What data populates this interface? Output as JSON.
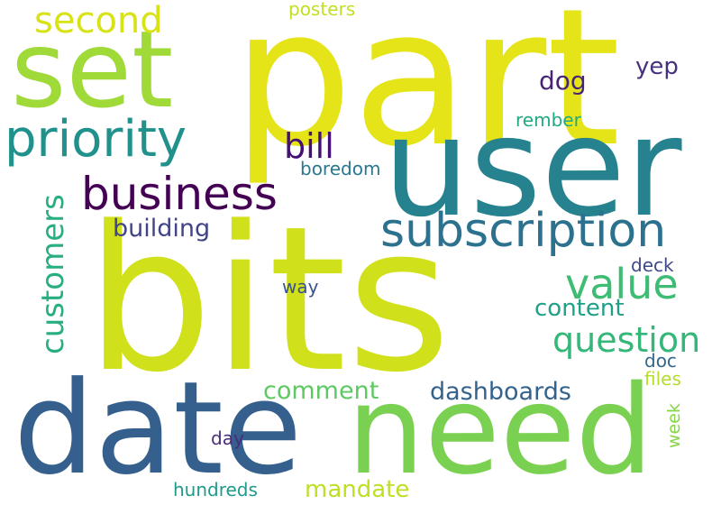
{
  "background": "#ffffff",
  "words": [
    {
      "id": "part",
      "text": "part",
      "color": "#e5e419"
    },
    {
      "id": "bits",
      "text": "bits",
      "color": "#d0e11c"
    },
    {
      "id": "user",
      "text": "user",
      "color": "#26828e"
    },
    {
      "id": "date",
      "text": "date",
      "color": "#355f8d"
    },
    {
      "id": "need",
      "text": "need",
      "color": "#7ad151"
    },
    {
      "id": "set",
      "text": "set",
      "color": "#a0da39"
    },
    {
      "id": "priority",
      "text": "priority",
      "color": "#21918c"
    },
    {
      "id": "business",
      "text": "business",
      "color": "#440154"
    },
    {
      "id": "subscription",
      "text": "subscription",
      "color": "#2c728e"
    },
    {
      "id": "second",
      "text": "second",
      "color": "#d8e219"
    },
    {
      "id": "value",
      "text": "value",
      "color": "#3fbc73"
    },
    {
      "id": "customers",
      "text": "customers",
      "color": "#28ae80"
    },
    {
      "id": "question",
      "text": "question",
      "color": "#35b779"
    },
    {
      "id": "bill",
      "text": "bill",
      "color": "#440f76"
    },
    {
      "id": "dashboards",
      "text": "dashboards",
      "color": "#33638d"
    },
    {
      "id": "comment",
      "text": "comment",
      "color": "#5ec962"
    },
    {
      "id": "mandate",
      "text": "mandate",
      "color": "#bddf26"
    },
    {
      "id": "building",
      "text": "building",
      "color": "#414487"
    },
    {
      "id": "content",
      "text": "content",
      "color": "#1fa187"
    },
    {
      "id": "dog",
      "text": "dog",
      "color": "#482475"
    },
    {
      "id": "yep",
      "text": "yep",
      "color": "#46327e"
    },
    {
      "id": "boredom",
      "text": "boredom",
      "color": "#2a788e"
    },
    {
      "id": "rember",
      "text": "rember",
      "color": "#22a884"
    },
    {
      "id": "posters",
      "text": "posters",
      "color": "#c2df23"
    },
    {
      "id": "way",
      "text": "way",
      "color": "#3b528b"
    },
    {
      "id": "deck",
      "text": "deck",
      "color": "#3e4989"
    },
    {
      "id": "doc",
      "text": "doc",
      "color": "#31688e"
    },
    {
      "id": "files",
      "text": "files",
      "color": "#b5de2b"
    },
    {
      "id": "week",
      "text": "week",
      "color": "#86d549"
    },
    {
      "id": "day",
      "text": "day",
      "color": "#472d7b"
    },
    {
      "id": "hundreds",
      "text": "hundreds",
      "color": "#1e9b8a"
    }
  ]
}
